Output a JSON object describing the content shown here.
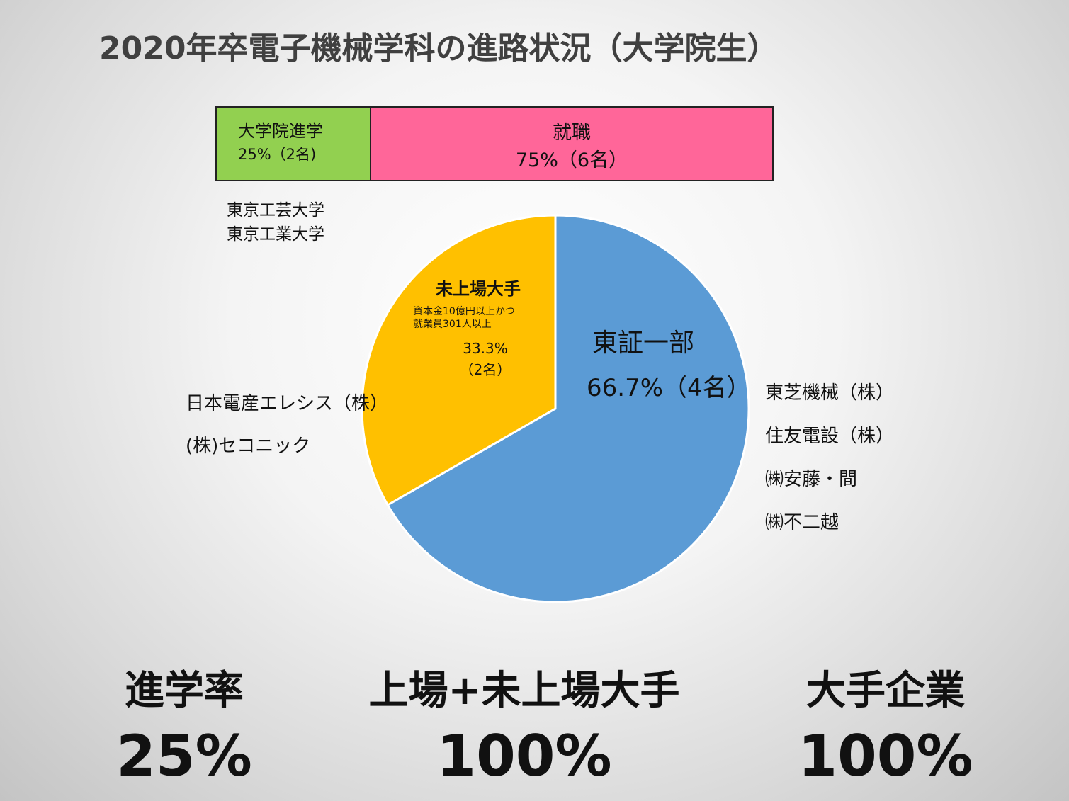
{
  "title": "2020年卒電子機械学科の進路状況（大学院生）",
  "bar": {
    "grad_label": "大学院進学",
    "grad_value": "25%（2名)",
    "job_label": "就職",
    "job_value": "75%（6名）",
    "grad_color": "#92d050",
    "job_color": "#ff6699"
  },
  "universities": [
    "東京工芸大学",
    "東京工業大学"
  ],
  "chart_data": {
    "type": "pie",
    "slices": [
      {
        "label": "東証一部",
        "value": 66.7,
        "display": "66.7%（4名）",
        "color": "#5b9bd5"
      },
      {
        "label": "未上場大手",
        "value": 33.3,
        "display": "33.3%",
        "count": "（2名）",
        "note": [
          "資本金10億円以上かつ",
          "就業員301人以上"
        ],
        "color": "#ffc000"
      }
    ],
    "start_angle": "12 o'clock, clockwise"
  },
  "companies_left": [
    "日本電産エレシス（株）",
    "(株)セコニック"
  ],
  "companies_right": [
    "東芝機械（株）",
    "住友電設（株）",
    "㈱安藤・間",
    "㈱不二越"
  ],
  "stats": [
    {
      "label": "進学率",
      "value": "25%"
    },
    {
      "label": "上場+未上場大手",
      "value": "100%"
    },
    {
      "label": "大手企業",
      "value": "100%"
    }
  ]
}
